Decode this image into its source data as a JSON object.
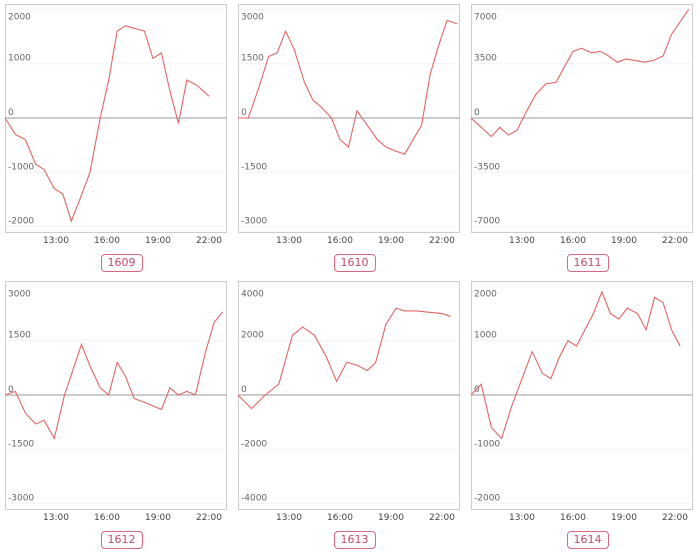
{
  "chart_data": [
    {
      "type": "line",
      "label": "1609",
      "x": [
        "10:00",
        "11:00",
        "12:00",
        "13:00",
        "14:00",
        "15:00",
        "16:00",
        "17:00",
        "18:00",
        "19:00",
        "20:00",
        "21:00",
        "22:00"
      ],
      "xticks": [
        "13:00",
        "16:00",
        "19:00",
        "22:00"
      ],
      "yticks": [
        2000,
        1000,
        0,
        -1000,
        -2000
      ],
      "ylim": [
        -2100,
        2100
      ],
      "grid": true,
      "series": [
        {
          "color": "#e06666",
          "points": [
            [
              10.0,
              0
            ],
            [
              10.6,
              -300
            ],
            [
              11.2,
              -400
            ],
            [
              11.8,
              -850
            ],
            [
              12.3,
              -950
            ],
            [
              12.9,
              -1300
            ],
            [
              13.4,
              -1400
            ],
            [
              13.9,
              -1900
            ],
            [
              14.4,
              -1500
            ],
            [
              15.0,
              -1000
            ],
            [
              15.6,
              0
            ],
            [
              16.1,
              700
            ],
            [
              16.6,
              1600
            ],
            [
              17.1,
              1700
            ],
            [
              17.6,
              1650
            ],
            [
              18.2,
              1600
            ],
            [
              18.7,
              1100
            ],
            [
              19.2,
              1200
            ],
            [
              19.7,
              500
            ],
            [
              20.2,
              -100
            ],
            [
              20.7,
              700
            ],
            [
              21.3,
              600
            ],
            [
              22.0,
              400
            ]
          ]
        }
      ]
    },
    {
      "type": "line",
      "label": "1610",
      "x": [
        "10:00",
        "11:00",
        "12:00",
        "13:00",
        "14:00",
        "15:00",
        "16:00",
        "17:00",
        "18:00",
        "19:00",
        "20:00",
        "21:00",
        "22:00"
      ],
      "xticks": [
        "13:00",
        "16:00",
        "19:00",
        "22:00"
      ],
      "yticks": [
        3000,
        1500,
        0,
        -1500,
        -3000
      ],
      "ylim": [
        -3150,
        3150
      ],
      "grid": true,
      "series": [
        {
          "color": "#e06666",
          "points": [
            [
              10.0,
              0
            ],
            [
              10.6,
              0
            ],
            [
              11.2,
              800
            ],
            [
              11.8,
              1700
            ],
            [
              12.3,
              1800
            ],
            [
              12.8,
              2400
            ],
            [
              13.3,
              1900
            ],
            [
              13.9,
              1000
            ],
            [
              14.4,
              500
            ],
            [
              14.9,
              300
            ],
            [
              15.5,
              0
            ],
            [
              16.0,
              -600
            ],
            [
              16.5,
              -800
            ],
            [
              17.0,
              200
            ],
            [
              17.6,
              -200
            ],
            [
              18.2,
              -600
            ],
            [
              18.7,
              -800
            ],
            [
              19.2,
              -900
            ],
            [
              19.8,
              -1000
            ],
            [
              20.3,
              -600
            ],
            [
              20.8,
              -200
            ],
            [
              21.3,
              1200
            ],
            [
              21.8,
              2000
            ],
            [
              22.3,
              2700
            ],
            [
              22.9,
              2600
            ]
          ]
        }
      ]
    },
    {
      "type": "line",
      "label": "1611",
      "x": [
        "10:00",
        "11:00",
        "12:00",
        "13:00",
        "14:00",
        "15:00",
        "16:00",
        "17:00",
        "18:00",
        "19:00",
        "20:00",
        "21:00",
        "22:00"
      ],
      "xticks": [
        "13:00",
        "16:00",
        "19:00",
        "22:00"
      ],
      "yticks": [
        7000,
        3500,
        0,
        -3500,
        -7000
      ],
      "ylim": [
        -7350,
        7350
      ],
      "grid": true,
      "series": [
        {
          "color": "#e06666",
          "points": [
            [
              10.0,
              0
            ],
            [
              10.6,
              -600
            ],
            [
              11.2,
              -1200
            ],
            [
              11.7,
              -600
            ],
            [
              12.2,
              -1100
            ],
            [
              12.7,
              -800
            ],
            [
              13.3,
              500
            ],
            [
              13.8,
              1500
            ],
            [
              14.4,
              2200
            ],
            [
              15.0,
              2300
            ],
            [
              15.5,
              3300
            ],
            [
              16.0,
              4300
            ],
            [
              16.5,
              4500
            ],
            [
              17.1,
              4200
            ],
            [
              17.6,
              4300
            ],
            [
              18.1,
              4000
            ],
            [
              18.6,
              3600
            ],
            [
              19.1,
              3800
            ],
            [
              19.7,
              3700
            ],
            [
              20.2,
              3600
            ],
            [
              20.7,
              3700
            ],
            [
              21.3,
              4000
            ],
            [
              21.8,
              5400
            ],
            [
              22.3,
              6200
            ],
            [
              22.8,
              7000
            ]
          ]
        }
      ]
    },
    {
      "type": "line",
      "label": "1612",
      "x": [
        "10:00",
        "11:00",
        "12:00",
        "13:00",
        "14:00",
        "15:00",
        "16:00",
        "17:00",
        "18:00",
        "19:00",
        "20:00",
        "21:00",
        "22:00"
      ],
      "xticks": [
        "13:00",
        "16:00",
        "19:00",
        "22:00"
      ],
      "yticks": [
        3000,
        1500,
        0,
        -1500,
        -3000
      ],
      "ylim": [
        -3150,
        3150
      ],
      "grid": true,
      "series": [
        {
          "color": "#e06666",
          "points": [
            [
              10.0,
              0
            ],
            [
              10.6,
              100
            ],
            [
              11.2,
              -500
            ],
            [
              11.8,
              -800
            ],
            [
              12.3,
              -700
            ],
            [
              12.9,
              -1200
            ],
            [
              13.5,
              0
            ],
            [
              14.0,
              700
            ],
            [
              14.5,
              1400
            ],
            [
              15.0,
              800
            ],
            [
              15.6,
              200
            ],
            [
              16.1,
              0
            ],
            [
              16.6,
              900
            ],
            [
              17.1,
              500
            ],
            [
              17.6,
              -100
            ],
            [
              18.2,
              -200
            ],
            [
              18.7,
              -300
            ],
            [
              19.2,
              -400
            ],
            [
              19.7,
              200
            ],
            [
              20.2,
              0
            ],
            [
              20.7,
              100
            ],
            [
              21.2,
              0
            ],
            [
              21.8,
              1200
            ],
            [
              22.3,
              2000
            ],
            [
              22.8,
              2300
            ]
          ]
        }
      ]
    },
    {
      "type": "line",
      "label": "1613",
      "x": [
        "10:00",
        "11:00",
        "12:00",
        "13:00",
        "14:00",
        "15:00",
        "16:00",
        "17:00",
        "18:00",
        "19:00",
        "20:00",
        "21:00",
        "22:00"
      ],
      "xticks": [
        "13:00",
        "16:00",
        "19:00",
        "22:00"
      ],
      "yticks": [
        4000,
        2000,
        0,
        -2000,
        -4000
      ],
      "ylim": [
        -4200,
        4200
      ],
      "grid": true,
      "series": [
        {
          "color": "#e06666",
          "points": [
            [
              10.0,
              0
            ],
            [
              10.8,
              -500
            ],
            [
              11.6,
              0
            ],
            [
              12.4,
              400
            ],
            [
              13.2,
              2200
            ],
            [
              13.8,
              2500
            ],
            [
              14.5,
              2200
            ],
            [
              15.2,
              1400
            ],
            [
              15.8,
              500
            ],
            [
              16.4,
              1200
            ],
            [
              17.0,
              1100
            ],
            [
              17.6,
              900
            ],
            [
              18.1,
              1200
            ],
            [
              18.7,
              2600
            ],
            [
              19.3,
              3200
            ],
            [
              19.8,
              3100
            ],
            [
              20.5,
              3100
            ],
            [
              21.2,
              3050
            ],
            [
              22.0,
              3000
            ],
            [
              22.5,
              2900
            ]
          ]
        }
      ]
    },
    {
      "type": "line",
      "label": "1614",
      "x": [
        "10:00",
        "11:00",
        "12:00",
        "13:00",
        "14:00",
        "15:00",
        "16:00",
        "17:00",
        "18:00",
        "19:00",
        "20:00",
        "21:00",
        "22:00"
      ],
      "xticks": [
        "13:00",
        "16:00",
        "19:00",
        "22:00"
      ],
      "yticks": [
        2000,
        1000,
        0,
        -1000,
        -2000
      ],
      "ylim": [
        -2100,
        2100
      ],
      "grid": true,
      "series": [
        {
          "color": "#e06666",
          "points": [
            [
              10.0,
              0
            ],
            [
              10.6,
              200
            ],
            [
              11.2,
              -600
            ],
            [
              11.8,
              -800
            ],
            [
              12.4,
              -200
            ],
            [
              13.0,
              300
            ],
            [
              13.6,
              800
            ],
            [
              14.2,
              400
            ],
            [
              14.7,
              300
            ],
            [
              15.2,
              700
            ],
            [
              15.7,
              1000
            ],
            [
              16.2,
              900
            ],
            [
              16.7,
              1200
            ],
            [
              17.2,
              1500
            ],
            [
              17.7,
              1900
            ],
            [
              18.2,
              1500
            ],
            [
              18.7,
              1400
            ],
            [
              19.2,
              1600
            ],
            [
              19.8,
              1500
            ],
            [
              20.3,
              1200
            ],
            [
              20.8,
              1800
            ],
            [
              21.3,
              1700
            ],
            [
              21.8,
              1200
            ],
            [
              22.3,
              900
            ]
          ]
        }
      ]
    }
  ]
}
